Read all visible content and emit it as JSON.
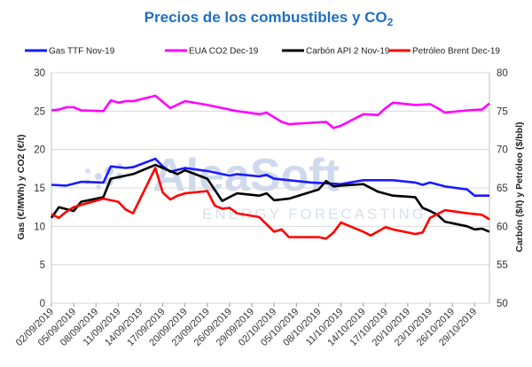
{
  "chart_data": {
    "type": "line",
    "title": "Precios de los combustibles y CO",
    "title_sub": "2",
    "ylabel_left": "Gas (€/MWh) y CO2 (€/t)",
    "ylabel_right": "Carbón ($/t) y Petróleo ($/bbl)",
    "ylim_left": [
      0,
      30
    ],
    "ylim_right": [
      50,
      80
    ],
    "yticks_left": [
      "0",
      "5",
      "10",
      "15",
      "20",
      "25",
      "30"
    ],
    "yticks_right": [
      "50",
      "55",
      "60",
      "65",
      "70",
      "75",
      "80"
    ],
    "grid": true,
    "legend_position": "top",
    "watermark": "AleaSoft",
    "watermark_sub": "ENERGY FORECASTING",
    "x_tick_labels": [
      "02/09/2019",
      "05/09/2019",
      "08/09/2019",
      "11/09/2019",
      "14/09/2019",
      "17/09/2019",
      "20/09/2019",
      "23/09/2019",
      "26/09/2019",
      "29/09/2019",
      "02/10/2019",
      "05/10/2019",
      "08/10/2019",
      "11/10/2019",
      "14/10/2019",
      "17/10/2019",
      "20/10/2019",
      "23/10/2019",
      "26/10/2019",
      "29/10/2019"
    ],
    "x_start": "02/09/2019",
    "x_end": "31/10/2019",
    "series": [
      {
        "name": "Gas TTF Nov-19",
        "color": "#1a1aff",
        "axis": "left",
        "points": [
          [
            "02/09/2019",
            15.4
          ],
          [
            "04/09/2019",
            15.3
          ],
          [
            "06/09/2019",
            15.8
          ],
          [
            "09/09/2019",
            15.7
          ],
          [
            "10/09/2019",
            17.8
          ],
          [
            "12/09/2019",
            17.6
          ],
          [
            "13/09/2019",
            17.7
          ],
          [
            "16/09/2019",
            18.8
          ],
          [
            "17/09/2019",
            17.8
          ],
          [
            "18/09/2019",
            17.1
          ],
          [
            "20/09/2019",
            17.6
          ],
          [
            "23/09/2019",
            17.2
          ],
          [
            "25/09/2019",
            16.8
          ],
          [
            "26/09/2019",
            16.6
          ],
          [
            "27/09/2019",
            16.8
          ],
          [
            "30/09/2019",
            16.5
          ],
          [
            "01/10/2019",
            16.7
          ],
          [
            "02/10/2019",
            16.2
          ],
          [
            "04/10/2019",
            16.0
          ],
          [
            "07/10/2019",
            15.7
          ],
          [
            "09/10/2019",
            15.6
          ],
          [
            "11/10/2019",
            15.5
          ],
          [
            "14/10/2019",
            16.0
          ],
          [
            "16/10/2019",
            16.0
          ],
          [
            "18/10/2019",
            16.0
          ],
          [
            "21/10/2019",
            15.7
          ],
          [
            "22/10/2019",
            15.4
          ],
          [
            "23/10/2019",
            15.7
          ],
          [
            "25/10/2019",
            15.2
          ],
          [
            "28/10/2019",
            14.8
          ],
          [
            "29/10/2019",
            14.0
          ],
          [
            "31/10/2019",
            14.0
          ]
        ]
      },
      {
        "name": "EUA CO2 Dec-19",
        "color": "#ff00ff",
        "axis": "left",
        "points": [
          [
            "02/09/2019",
            25.1
          ],
          [
            "03/09/2019",
            25.2
          ],
          [
            "04/09/2019",
            25.5
          ],
          [
            "05/09/2019",
            25.5
          ],
          [
            "06/09/2019",
            25.1
          ],
          [
            "09/09/2019",
            25.0
          ],
          [
            "10/09/2019",
            26.4
          ],
          [
            "11/09/2019",
            26.1
          ],
          [
            "12/09/2019",
            26.3
          ],
          [
            "13/09/2019",
            26.3
          ],
          [
            "16/09/2019",
            27.0
          ],
          [
            "18/09/2019",
            25.4
          ],
          [
            "20/09/2019",
            26.3
          ],
          [
            "23/09/2019",
            25.8
          ],
          [
            "26/09/2019",
            25.2
          ],
          [
            "27/09/2019",
            25.0
          ],
          [
            "30/09/2019",
            24.6
          ],
          [
            "01/10/2019",
            24.8
          ],
          [
            "03/10/2019",
            23.6
          ],
          [
            "04/10/2019",
            23.3
          ],
          [
            "09/10/2019",
            23.6
          ],
          [
            "10/10/2019",
            22.8
          ],
          [
            "11/10/2019",
            23.1
          ],
          [
            "14/10/2019",
            24.6
          ],
          [
            "16/10/2019",
            24.5
          ],
          [
            "17/10/2019",
            25.4
          ],
          [
            "18/10/2019",
            26.1
          ],
          [
            "21/10/2019",
            25.8
          ],
          [
            "23/10/2019",
            25.9
          ],
          [
            "24/10/2019",
            25.4
          ],
          [
            "25/10/2019",
            24.8
          ],
          [
            "28/10/2019",
            25.1
          ],
          [
            "30/10/2019",
            25.2
          ],
          [
            "31/10/2019",
            26.0
          ]
        ]
      },
      {
        "name": "Carbón API 2 Nov-19",
        "color": "#000000",
        "axis": "right",
        "points": [
          [
            "02/09/2019",
            61.1
          ],
          [
            "03/09/2019",
            62.5
          ],
          [
            "05/09/2019",
            62.0
          ],
          [
            "06/09/2019",
            63.2
          ],
          [
            "09/09/2019",
            63.8
          ],
          [
            "10/09/2019",
            66.2
          ],
          [
            "11/09/2019",
            66.4
          ],
          [
            "13/09/2019",
            66.8
          ],
          [
            "16/09/2019",
            68.0
          ],
          [
            "17/09/2019",
            67.6
          ],
          [
            "19/09/2019",
            66.8
          ],
          [
            "20/09/2019",
            67.3
          ],
          [
            "23/09/2019",
            66.2
          ],
          [
            "25/09/2019",
            63.3
          ],
          [
            "26/09/2019",
            63.8
          ],
          [
            "27/09/2019",
            64.3
          ],
          [
            "30/09/2019",
            64.0
          ],
          [
            "01/10/2019",
            64.3
          ],
          [
            "02/10/2019",
            63.4
          ],
          [
            "04/10/2019",
            63.6
          ],
          [
            "08/10/2019",
            64.8
          ],
          [
            "09/10/2019",
            65.9
          ],
          [
            "10/10/2019",
            65.2
          ],
          [
            "11/10/2019",
            65.3
          ],
          [
            "14/10/2019",
            65.5
          ],
          [
            "16/10/2019",
            64.5
          ],
          [
            "18/10/2019",
            64.0
          ],
          [
            "21/10/2019",
            63.8
          ],
          [
            "22/10/2019",
            62.4
          ],
          [
            "23/10/2019",
            62.0
          ],
          [
            "24/10/2019",
            61.5
          ],
          [
            "25/10/2019",
            60.6
          ],
          [
            "28/10/2019",
            60.0
          ],
          [
            "29/10/2019",
            59.6
          ],
          [
            "30/10/2019",
            59.7
          ],
          [
            "31/10/2019",
            59.3
          ]
        ]
      },
      {
        "name": "Petróleo Brent Dec-19",
        "color": "#ff0000",
        "axis": "right",
        "points": [
          [
            "02/09/2019",
            61.6
          ],
          [
            "03/09/2019",
            61.1
          ],
          [
            "04/09/2019",
            61.9
          ],
          [
            "05/09/2019",
            62.5
          ],
          [
            "06/09/2019",
            62.8
          ],
          [
            "09/09/2019",
            63.6
          ],
          [
            "10/09/2019",
            63.4
          ],
          [
            "11/09/2019",
            63.2
          ],
          [
            "12/09/2019",
            62.2
          ],
          [
            "13/09/2019",
            61.7
          ],
          [
            "16/09/2019",
            67.6
          ],
          [
            "17/09/2019",
            64.4
          ],
          [
            "18/09/2019",
            63.5
          ],
          [
            "19/09/2019",
            64.0
          ],
          [
            "20/09/2019",
            64.3
          ],
          [
            "23/09/2019",
            64.6
          ],
          [
            "24/09/2019",
            62.7
          ],
          [
            "25/09/2019",
            62.3
          ],
          [
            "26/09/2019",
            62.4
          ],
          [
            "27/09/2019",
            61.7
          ],
          [
            "30/09/2019",
            61.2
          ],
          [
            "02/10/2019",
            59.3
          ],
          [
            "03/10/2019",
            59.6
          ],
          [
            "04/10/2019",
            58.6
          ],
          [
            "08/10/2019",
            58.6
          ],
          [
            "09/10/2019",
            58.4
          ],
          [
            "10/10/2019",
            59.2
          ],
          [
            "11/10/2019",
            60.5
          ],
          [
            "14/10/2019",
            59.3
          ],
          [
            "15/10/2019",
            58.8
          ],
          [
            "17/10/2019",
            59.9
          ],
          [
            "18/10/2019",
            59.6
          ],
          [
            "21/10/2019",
            59.0
          ],
          [
            "22/10/2019",
            59.2
          ],
          [
            "23/10/2019",
            61.1
          ],
          [
            "25/10/2019",
            62.1
          ],
          [
            "28/10/2019",
            61.7
          ],
          [
            "30/10/2019",
            61.5
          ],
          [
            "31/10/2019",
            60.9
          ]
        ]
      }
    ]
  }
}
